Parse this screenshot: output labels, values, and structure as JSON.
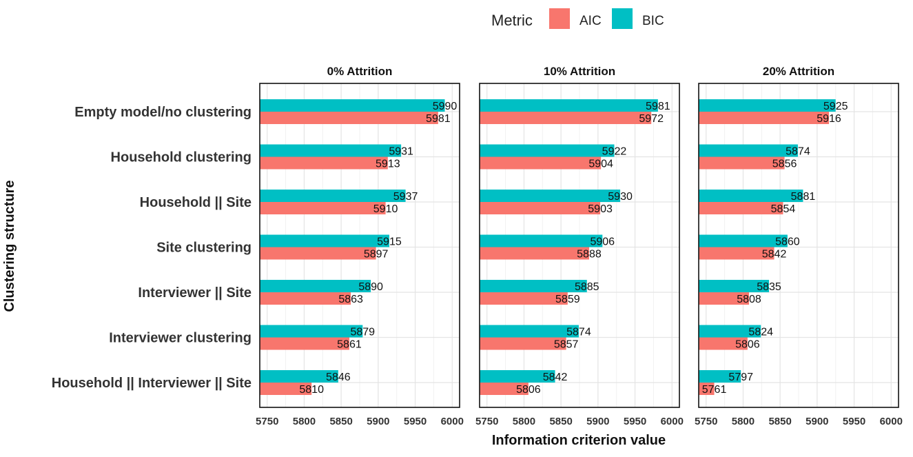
{
  "chart_data": {
    "type": "bar",
    "orientation": "horizontal",
    "xlabel": "Information criterion value",
    "ylabel": "Clustering structure",
    "xlim": [
      5740,
      6010
    ],
    "x_ticks": [
      5750,
      5800,
      5850,
      5900,
      5950,
      6000
    ],
    "legend": {
      "title": "Metric",
      "position": "top",
      "entries": [
        {
          "name": "AIC",
          "color": "#F8766D"
        },
        {
          "name": "BIC",
          "color": "#00BFC4"
        }
      ]
    },
    "categories": [
      "Empty model/no clustering",
      "Household clustering",
      "Household || Site",
      "Site clustering",
      "Interviewer || Site",
      "Interviewer clustering",
      "Household || Interviewer || Site"
    ],
    "facets": [
      {
        "title": "0% Attrition",
        "series": [
          {
            "name": "BIC",
            "values": [
              5990,
              5931,
              5937,
              5915,
              5890,
              5879,
              5846
            ]
          },
          {
            "name": "AIC",
            "values": [
              5981,
              5913,
              5910,
              5897,
              5863,
              5861,
              5810
            ]
          }
        ]
      },
      {
        "title": "10% Attrition",
        "series": [
          {
            "name": "BIC",
            "values": [
              5981,
              5922,
              5930,
              5906,
              5885,
              5874,
              5842
            ]
          },
          {
            "name": "AIC",
            "values": [
              5972,
              5904,
              5903,
              5888,
              5859,
              5857,
              5806
            ]
          }
        ]
      },
      {
        "title": "20% Attrition",
        "series": [
          {
            "name": "BIC",
            "values": [
              5925,
              5874,
              5881,
              5860,
              5835,
              5824,
              5797
            ]
          },
          {
            "name": "AIC",
            "values": [
              5916,
              5856,
              5854,
              5842,
              5808,
              5806,
              5761
            ]
          }
        ]
      }
    ]
  }
}
